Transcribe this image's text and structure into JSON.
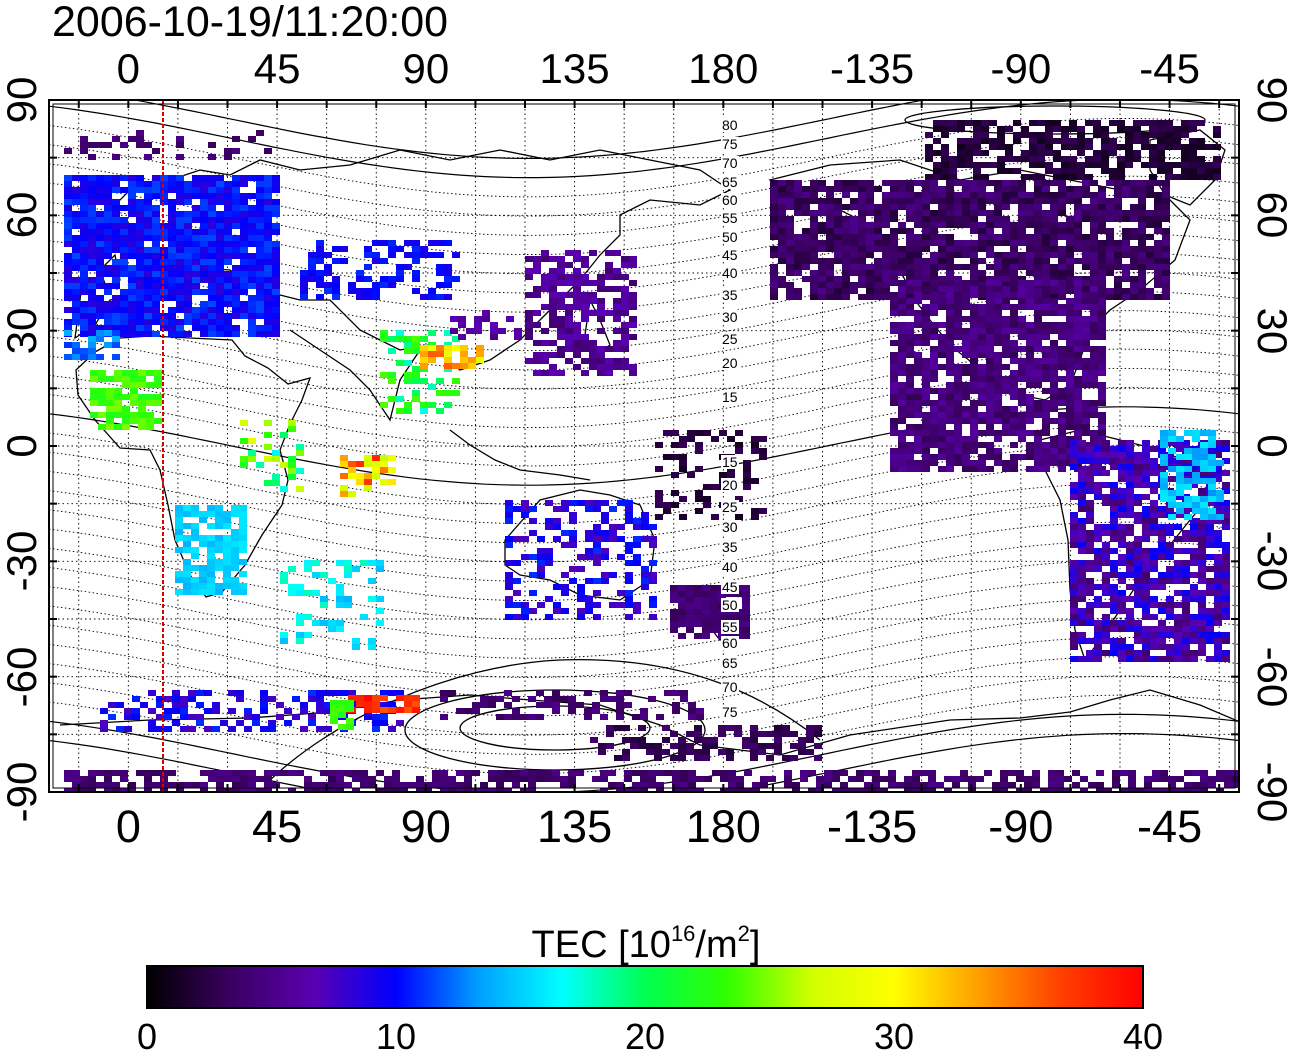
{
  "timestamp": "2006-10-19/11:20:00",
  "axes": {
    "top_lon_labels": [
      "0",
      "45",
      "90",
      "135",
      "180",
      "-135",
      "-90",
      "-45"
    ],
    "bottom_lon_labels": [
      "0",
      "45",
      "90",
      "135",
      "180",
      "-135",
      "-90",
      "-45"
    ],
    "left_lat_labels": [
      "90",
      "60",
      "30",
      "0",
      "-30",
      "-60",
      "-90"
    ],
    "right_lat_labels": [
      "90",
      "60",
      "30",
      "0",
      "-30",
      "-60",
      "-90"
    ]
  },
  "contour_labels": {
    "north": [
      "80",
      "75",
      "70",
      "65",
      "60",
      "55",
      "50",
      "45",
      "40",
      "35",
      "30",
      "25",
      "20",
      "15"
    ],
    "south": [
      "15",
      "20",
      "25",
      "30",
      "35",
      "40",
      "45",
      "50",
      "55",
      "60",
      "65",
      "70",
      "75"
    ]
  },
  "colorbar": {
    "label_prefix": "TEC  [10",
    "label_exp": "16",
    "label_mid": "/m",
    "label_exp2": "2",
    "label_suffix": "]",
    "ticks": [
      "0",
      "10",
      "20",
      "30",
      "40"
    ],
    "colors": [
      "#000000",
      "#3a0060",
      "#5a00b0",
      "#0000ff",
      "#00a0ff",
      "#00ffff",
      "#00ff50",
      "#30ff00",
      "#d0ff00",
      "#ffff00",
      "#ffa000",
      "#ff4000",
      "#ff0000"
    ],
    "range": [
      0,
      40
    ]
  },
  "colors": {
    "terminator": "#e00000",
    "frame": "#000000"
  }
}
